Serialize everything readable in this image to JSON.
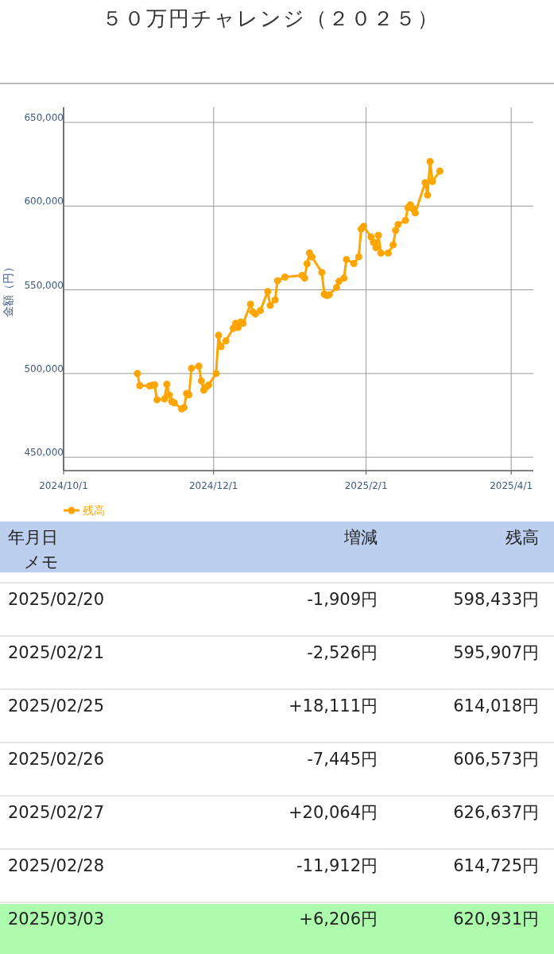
{
  "chart_data": {
    "type": "line",
    "title": "５０万円チャレンジ（２０２５）",
    "ylabel": "金額（円）",
    "xlim": [
      "2024-10-01",
      "2025-04-10"
    ],
    "xticks": [
      {
        "value": "2024-10-01",
        "label": "2024/10/1"
      },
      {
        "value": "2024-12-01",
        "label": "2024/12/1"
      },
      {
        "value": "2025-02-01",
        "label": "2025/2/1"
      },
      {
        "value": "2025-04-01",
        "label": "2025/4/1"
      }
    ],
    "ylim": [
      442000,
      659000
    ],
    "yticks": [
      {
        "value": 450000,
        "label": "450,000"
      },
      {
        "value": 500000,
        "label": "500,000"
      },
      {
        "value": 550000,
        "label": "550,000"
      },
      {
        "value": 600000,
        "label": "600,000"
      },
      {
        "value": 650000,
        "label": "650,000"
      }
    ],
    "grid": true,
    "legend": "bottom left",
    "marker": "circle",
    "line_style": "solid",
    "series": [
      {
        "name": "残高",
        "color": "#ffa500",
        "x": [
          "2024-10-31",
          "2024-11-01",
          "2024-11-05",
          "2024-11-06",
          "2024-11-07",
          "2024-11-08",
          "2024-11-11",
          "2024-11-12",
          "2024-11-13",
          "2024-11-14",
          "2024-11-15",
          "2024-11-18",
          "2024-11-19",
          "2024-11-20",
          "2024-11-21",
          "2024-11-22",
          "2024-11-25",
          "2024-11-26",
          "2024-11-27",
          "2024-11-28",
          "2024-11-29",
          "2024-12-02",
          "2024-12-03",
          "2024-12-04",
          "2024-12-06",
          "2024-12-09",
          "2024-12-10",
          "2024-12-11",
          "2024-12-12",
          "2024-12-13",
          "2024-12-16",
          "2024-12-17",
          "2024-12-18",
          "2024-12-20",
          "2024-12-23",
          "2024-12-24",
          "2024-12-26",
          "2024-12-27",
          "2024-12-30",
          "2025-01-06",
          "2025-01-07",
          "2025-01-08",
          "2025-01-09",
          "2025-01-10",
          "2025-01-14",
          "2025-01-15",
          "2025-01-16",
          "2025-01-17",
          "2025-01-20",
          "2025-01-21",
          "2025-01-23",
          "2025-01-24",
          "2025-01-27",
          "2025-01-29",
          "2025-01-30",
          "2025-01-31",
          "2025-02-03",
          "2025-02-04",
          "2025-02-05",
          "2025-02-06",
          "2025-02-07",
          "2025-02-10",
          "2025-02-12",
          "2025-02-13",
          "2025-02-14",
          "2025-02-17",
          "2025-02-18",
          "2025-02-19",
          "2025-02-20",
          "2025-02-21",
          "2025-02-25",
          "2025-02-26",
          "2025-02-27",
          "2025-02-28",
          "2025-03-03"
        ],
        "values": [
          500000,
          492800,
          492600,
          493000,
          493300,
          484300,
          484800,
          493600,
          487100,
          483300,
          482500,
          478900,
          479700,
          488100,
          487300,
          503100,
          504400,
          495600,
          490100,
          492000,
          493200,
          500000,
          522800,
          516100,
          519500,
          527000,
          530000,
          527500,
          530800,
          530000,
          541400,
          536900,
          535600,
          537600,
          549000,
          540700,
          544000,
          555400,
          557600,
          558600,
          557000,
          565600,
          572000,
          569600,
          560400,
          547400,
          546600,
          547100,
          551400,
          555100,
          557000,
          568100,
          565700,
          569700,
          586300,
          587900,
          581600,
          578400,
          575200,
          582600,
          572000,
          572000,
          576800,
          585500,
          589000,
          591500,
          599000,
          600700,
          598433,
          595907,
          614018,
          606573,
          626637,
          614725,
          620931
        ]
      }
    ],
    "annotations": [
      "年月日",
      "メモ",
      "増減",
      "残高",
      "2025/02/20",
      "-1,909円",
      "598,433円",
      "2025/02/21",
      "-2,526円",
      "595,907円",
      "2025/02/25",
      "+18,111円",
      "614,018円",
      "2025/02/26",
      "-7,445円",
      "606,573円",
      "2025/02/27",
      "+20,064円",
      "626,637円",
      "2025/02/28",
      "-11,912円",
      "614,725円",
      "2025/03/03",
      "+6,206円",
      "620,931円"
    ]
  }
}
